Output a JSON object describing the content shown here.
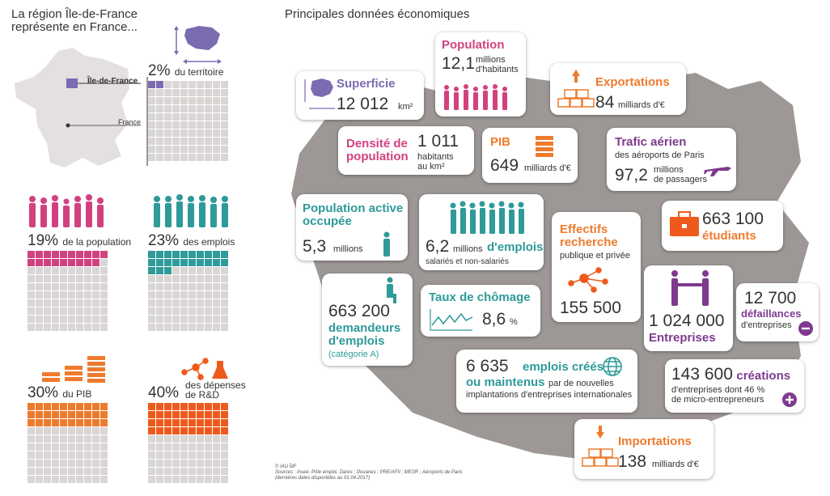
{
  "left": {
    "title_line1": "La région Île-de-France",
    "title_line2": "représente en France...",
    "map_label_idf": "Île-de-France",
    "map_label_france": "France",
    "blocks": [
      {
        "pct": "2%",
        "label": "du territoire",
        "filled": 2,
        "color": "#7b6bb0"
      },
      {
        "pct": "19%",
        "label": "de la population",
        "filled": 19,
        "color": "#d2417f"
      },
      {
        "pct": "23%",
        "label": "des emplois",
        "filled": 23,
        "color": "#2e9a99"
      },
      {
        "pct": "30%",
        "label": "du PIB",
        "filled": 30,
        "color": "#ee7b2d"
      },
      {
        "pct": "40%",
        "label_line1": "des dépenses",
        "label_line2": "de R&D",
        "filled": 40,
        "color": "#ee5a1b"
      }
    ]
  },
  "right": {
    "title": "Principales données économiques",
    "surface": {
      "label": "Superficie",
      "value": "12 012",
      "unit": "km²"
    },
    "population": {
      "label": "Population",
      "value": "12,1",
      "unit_line1": "millions",
      "unit_line2": "d'habitants"
    },
    "exports": {
      "label": "Exportations",
      "value": "84",
      "unit": "milliards d'€"
    },
    "density": {
      "label_line1": "Densité de",
      "label_line2": "population",
      "value": "1 011",
      "unit_line1": "habitants",
      "unit_line2": "au km²"
    },
    "pib": {
      "label": "PIB",
      "value": "649",
      "unit": "milliards d'€"
    },
    "air": {
      "label": "Trafic aérien",
      "sub": "des aéroports de Paris",
      "value": "97,2",
      "unit_line1": "millions",
      "unit_line2": "de passagers"
    },
    "active": {
      "label_line1": "Population active",
      "label_line2": "occupée",
      "value": "5,3",
      "unit": "millions"
    },
    "jobs": {
      "value": "6,2",
      "unit": "millions",
      "label": "d'emplois",
      "sub": "salariés et non-salariés"
    },
    "research": {
      "label_line1": "Effectifs",
      "label_line2": "recherche",
      "sub": "publique et privée",
      "value": "155 500"
    },
    "students": {
      "value": "663 100",
      "label": "étudiants"
    },
    "seekers": {
      "value": "663 200",
      "label_line1": "demandeurs",
      "label_line2": "d'emplois",
      "sub": "(catégorie A)"
    },
    "unemployment": {
      "label": "Taux de chômage",
      "value": "8,6",
      "unit": "%"
    },
    "companies": {
      "value": "1 024 000",
      "label": "Entreprises"
    },
    "failures": {
      "value": "12 700",
      "label": "défaillances",
      "sub": "d'entreprises"
    },
    "created": {
      "value": "6 635",
      "label_line1": "emplois créés",
      "label_line2": "ou maintenus",
      "sub1": "par de nouvelles",
      "sub2": "implantations d'entreprises internationales"
    },
    "creations": {
      "value": "143 600",
      "label": "créations",
      "sub1": "d'entreprises dont 46 %",
      "sub2": "de micro-entrepreneurs"
    },
    "imports": {
      "label": "Importations",
      "value": "138",
      "unit": "milliards d'€"
    },
    "source_line1": "© IAU ÎdF",
    "source_line2": "Sources : Insee; Pôle emploi, Dares ; Douanes ; PRE/AFII ; MESR ; Aéroports de Paris",
    "source_line3": "(dernières dates disponibles au 01.04.2017)"
  },
  "colors": {
    "purple": "#7b6bb0",
    "pink": "#d2417f",
    "orange": "#ee7b2d",
    "teal": "#2e9a99",
    "violet": "#7e3a8e",
    "grey": "#d9d6d5",
    "map": "#9d9896"
  }
}
